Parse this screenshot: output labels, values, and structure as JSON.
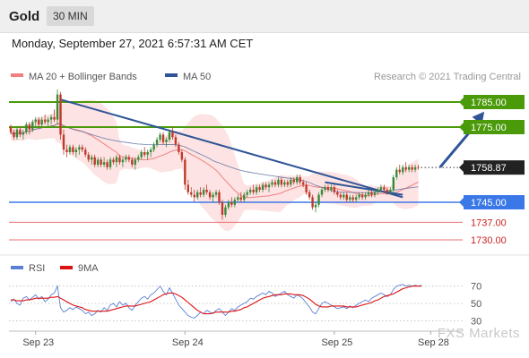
{
  "header": {
    "instrument": "Gold",
    "timeframe": "30 MIN",
    "datetime": "Monday, September 27, 2021 6:57:31 AM CET"
  },
  "colors": {
    "bullish": "#3a8a3a",
    "bearish": "#c0392b",
    "resistance": "#4a9a0a",
    "support": "#3b78e7",
    "target": "#e87070",
    "trend": "#2f5597",
    "ma20": "#f08080",
    "ma50": "#5a6fa0",
    "rsi": "#5b7fd6",
    "rsi_ma": "#dd1111",
    "last_price": "#222222"
  },
  "chart_data": [
    {
      "type": "candlestick",
      "legend": [
        {
          "name": "MA 20 + Bollinger Bands",
          "color": "#f08080"
        },
        {
          "name": "MA 50",
          "color": "#2f5597"
        }
      ],
      "credit": "Research © 2021 Trading Central",
      "ylim": [
        1725,
        1795
      ],
      "x_labels": [
        {
          "label": "Sep 23",
          "index": 8
        },
        {
          "label": "Sep 24",
          "index": 56
        },
        {
          "label": "Sep 25",
          "index": 104
        },
        {
          "label": "Sep 28",
          "index": 135
        }
      ],
      "levels": [
        {
          "label": "1785.00",
          "value": 1785,
          "kind": "resistance"
        },
        {
          "label": "1775.00",
          "value": 1775,
          "kind": "resistance"
        },
        {
          "label": "1758.87",
          "value": 1758.87,
          "kind": "last"
        },
        {
          "label": "1745.00",
          "value": 1745,
          "kind": "support"
        },
        {
          "label": "1737.00",
          "value": 1737,
          "kind": "target"
        },
        {
          "label": "1730.00",
          "value": 1730,
          "kind": "target"
        }
      ],
      "trendlines": [
        {
          "from": [
            16,
            1786
          ],
          "to": [
            126,
            1747
          ]
        },
        {
          "from": [
            101,
            1753
          ],
          "to": [
            126,
            1748
          ]
        }
      ],
      "forecast_arrow": {
        "from": [
          138,
          1759
        ],
        "to": [
          147,
          1784
        ]
      },
      "candles": [
        [
          1775,
          1776,
          1772,
          1773
        ],
        [
          1773,
          1774,
          1770,
          1771
        ],
        [
          1771,
          1775,
          1770,
          1774
        ],
        [
          1774,
          1775,
          1771,
          1772
        ],
        [
          1772,
          1774,
          1770,
          1773
        ],
        [
          1773,
          1777,
          1772,
          1776
        ],
        [
          1776,
          1777,
          1772,
          1774
        ],
        [
          1774,
          1778,
          1773,
          1777
        ],
        [
          1777,
          1779,
          1775,
          1778
        ],
        [
          1778,
          1779,
          1775,
          1776
        ],
        [
          1776,
          1779,
          1775,
          1778
        ],
        [
          1778,
          1780,
          1776,
          1777
        ],
        [
          1777,
          1779,
          1775,
          1778
        ],
        [
          1778,
          1780,
          1776,
          1779
        ],
        [
          1779,
          1782,
          1777,
          1778
        ],
        [
          1778,
          1790,
          1776,
          1788
        ],
        [
          1788,
          1789,
          1770,
          1772
        ],
        [
          1772,
          1774,
          1764,
          1766
        ],
        [
          1766,
          1768,
          1763,
          1765
        ],
        [
          1765,
          1768,
          1764,
          1767
        ],
        [
          1767,
          1768,
          1764,
          1765
        ],
        [
          1765,
          1767,
          1763,
          1766
        ],
        [
          1766,
          1768,
          1764,
          1767
        ],
        [
          1767,
          1768,
          1765,
          1766
        ],
        [
          1766,
          1767,
          1763,
          1764
        ],
        [
          1764,
          1765,
          1761,
          1762
        ],
        [
          1762,
          1764,
          1760,
          1763
        ],
        [
          1763,
          1764,
          1759,
          1760
        ],
        [
          1760,
          1763,
          1759,
          1762
        ],
        [
          1762,
          1763,
          1759,
          1760
        ],
        [
          1760,
          1763,
          1759,
          1761
        ],
        [
          1761,
          1762,
          1758,
          1759
        ],
        [
          1759,
          1763,
          1758,
          1762
        ],
        [
          1762,
          1763,
          1760,
          1761
        ],
        [
          1761,
          1764,
          1759,
          1763
        ],
        [
          1763,
          1764,
          1760,
          1761
        ],
        [
          1761,
          1763,
          1759,
          1762
        ],
        [
          1762,
          1764,
          1761,
          1763
        ],
        [
          1763,
          1764,
          1761,
          1762
        ],
        [
          1762,
          1763,
          1759,
          1760
        ],
        [
          1760,
          1763,
          1758,
          1762
        ],
        [
          1762,
          1764,
          1761,
          1763
        ],
        [
          1763,
          1766,
          1762,
          1765
        ],
        [
          1765,
          1767,
          1763,
          1764
        ],
        [
          1764,
          1766,
          1762,
          1765
        ],
        [
          1765,
          1767,
          1763,
          1766
        ],
        [
          1766,
          1769,
          1765,
          1768
        ],
        [
          1768,
          1771,
          1767,
          1770
        ],
        [
          1770,
          1773,
          1769,
          1772
        ],
        [
          1772,
          1773,
          1768,
          1769
        ],
        [
          1769,
          1771,
          1767,
          1770
        ],
        [
          1770,
          1774,
          1769,
          1773
        ],
        [
          1773,
          1775,
          1770,
          1771
        ],
        [
          1771,
          1772,
          1767,
          1768
        ],
        [
          1768,
          1769,
          1764,
          1765
        ],
        [
          1765,
          1766,
          1761,
          1762
        ],
        [
          1762,
          1763,
          1750,
          1752
        ],
        [
          1752,
          1754,
          1748,
          1749
        ],
        [
          1749,
          1751,
          1747,
          1748
        ],
        [
          1748,
          1750,
          1745,
          1747
        ],
        [
          1747,
          1750,
          1746,
          1749
        ],
        [
          1749,
          1751,
          1747,
          1748
        ],
        [
          1748,
          1751,
          1747,
          1750
        ],
        [
          1750,
          1752,
          1748,
          1749
        ],
        [
          1749,
          1750,
          1746,
          1747
        ],
        [
          1747,
          1749,
          1745,
          1748
        ],
        [
          1748,
          1750,
          1747,
          1749
        ],
        [
          1749,
          1750,
          1744,
          1745
        ],
        [
          1745,
          1746,
          1738,
          1740
        ],
        [
          1740,
          1744,
          1739,
          1743
        ],
        [
          1743,
          1746,
          1742,
          1745
        ],
        [
          1745,
          1747,
          1743,
          1744
        ],
        [
          1744,
          1747,
          1743,
          1746
        ],
        [
          1746,
          1748,
          1745,
          1747
        ],
        [
          1747,
          1749,
          1745,
          1746
        ],
        [
          1746,
          1749,
          1745,
          1748
        ],
        [
          1748,
          1750,
          1747,
          1749
        ],
        [
          1749,
          1751,
          1748,
          1750
        ],
        [
          1750,
          1752,
          1748,
          1749
        ],
        [
          1749,
          1752,
          1748,
          1751
        ],
        [
          1751,
          1752,
          1749,
          1750
        ],
        [
          1750,
          1753,
          1749,
          1752
        ],
        [
          1752,
          1753,
          1750,
          1751
        ],
        [
          1751,
          1753,
          1749,
          1752
        ],
        [
          1752,
          1754,
          1751,
          1753
        ],
        [
          1753,
          1754,
          1751,
          1752
        ],
        [
          1752,
          1755,
          1751,
          1754
        ],
        [
          1754,
          1755,
          1751,
          1752
        ],
        [
          1752,
          1754,
          1751,
          1753
        ],
        [
          1753,
          1754,
          1751,
          1752
        ],
        [
          1752,
          1755,
          1751,
          1754
        ],
        [
          1754,
          1755,
          1752,
          1753
        ],
        [
          1753,
          1756,
          1752,
          1755
        ],
        [
          1755,
          1756,
          1752,
          1753
        ],
        [
          1753,
          1754,
          1751,
          1752
        ],
        [
          1752,
          1753,
          1748,
          1749
        ],
        [
          1749,
          1750,
          1746,
          1747
        ],
        [
          1747,
          1748,
          1742,
          1743
        ],
        [
          1743,
          1745,
          1741,
          1744
        ],
        [
          1744,
          1749,
          1743,
          1748
        ],
        [
          1748,
          1751,
          1747,
          1750
        ],
        [
          1750,
          1752,
          1749,
          1751
        ],
        [
          1751,
          1752,
          1749,
          1750
        ],
        [
          1750,
          1752,
          1749,
          1751
        ],
        [
          1751,
          1752,
          1748,
          1749
        ],
        [
          1749,
          1750,
          1747,
          1748
        ],
        [
          1748,
          1749,
          1746,
          1747
        ],
        [
          1747,
          1749,
          1746,
          1748
        ],
        [
          1748,
          1749,
          1745,
          1746
        ],
        [
          1746,
          1748,
          1745,
          1747
        ],
        [
          1747,
          1748,
          1745,
          1746
        ],
        [
          1746,
          1748,
          1745,
          1747
        ],
        [
          1747,
          1749,
          1746,
          1748
        ],
        [
          1748,
          1749,
          1746,
          1747
        ],
        [
          1747,
          1749,
          1746,
          1748
        ],
        [
          1748,
          1750,
          1747,
          1749
        ],
        [
          1749,
          1750,
          1747,
          1748
        ],
        [
          1748,
          1750,
          1747,
          1749
        ],
        [
          1749,
          1751,
          1748,
          1750
        ],
        [
          1750,
          1752,
          1749,
          1751
        ],
        [
          1751,
          1752,
          1749,
          1750
        ],
        [
          1750,
          1751,
          1748,
          1749
        ],
        [
          1749,
          1751,
          1748,
          1750
        ],
        [
          1750,
          1756,
          1749,
          1755
        ],
        [
          1755,
          1759,
          1754,
          1758
        ],
        [
          1758,
          1760,
          1756,
          1757
        ],
        [
          1757,
          1760,
          1756,
          1759
        ],
        [
          1759,
          1761,
          1757,
          1758
        ],
        [
          1758,
          1760,
          1757,
          1759
        ],
        [
          1759,
          1760,
          1757,
          1758
        ],
        [
          1758,
          1760,
          1757,
          1759
        ],
        [
          1759,
          1760,
          1758,
          1758.87
        ]
      ]
    },
    {
      "type": "line",
      "legend": [
        {
          "name": "RSI",
          "color": "#5b7fd6"
        },
        {
          "name": "9MA",
          "color": "#dd1111"
        }
      ],
      "ylim": [
        20,
        80
      ],
      "y_ticks": [
        {
          "label": "70",
          "value": 70
        },
        {
          "label": "50",
          "value": 50
        },
        {
          "label": "30",
          "value": 30
        }
      ],
      "series": [
        {
          "name": "RSI",
          "values": [
            52,
            55,
            50,
            48,
            56,
            58,
            54,
            57,
            60,
            55,
            58,
            52,
            55,
            60,
            62,
            70,
            45,
            40,
            42,
            45,
            43,
            46,
            44,
            42,
            38,
            40,
            36,
            38,
            42,
            40,
            45,
            42,
            48,
            50,
            46,
            52,
            48,
            50,
            45,
            42,
            48,
            52,
            56,
            58,
            55,
            60,
            62,
            66,
            70,
            64,
            60,
            68,
            62,
            55,
            48,
            44,
            40,
            36,
            34,
            33,
            36,
            40,
            38,
            42,
            40,
            38,
            42,
            44,
            40,
            36,
            40,
            44,
            42,
            46,
            48,
            50,
            52,
            56,
            55,
            58,
            60,
            62,
            60,
            64,
            62,
            58,
            60,
            62,
            64,
            60,
            58,
            56,
            60,
            58,
            55,
            50,
            46,
            40,
            38,
            44,
            50,
            52,
            50,
            48,
            46,
            44,
            45,
            46,
            44,
            47,
            45,
            48,
            50,
            52,
            54,
            52,
            56,
            58,
            60,
            62,
            60,
            58,
            60,
            66,
            70,
            71,
            72,
            70,
            71,
            70,
            71,
            70,
            71
          ]
        },
        {
          "name": "9MA",
          "values": [
            54,
            54,
            53,
            53,
            53,
            54,
            54,
            55,
            56,
            56,
            56,
            56,
            56,
            57,
            57,
            58,
            56,
            54,
            52,
            50,
            48,
            47,
            46,
            45,
            43,
            42,
            41,
            41,
            41,
            41,
            41,
            41,
            42,
            43,
            44,
            45,
            46,
            47,
            47,
            47,
            47,
            48,
            49,
            50,
            51,
            52,
            54,
            56,
            58,
            60,
            61,
            62,
            62,
            61,
            59,
            57,
            54,
            51,
            48,
            45,
            42,
            40,
            38,
            38,
            38,
            39,
            40,
            40,
            40,
            40,
            40,
            41,
            41,
            42,
            43,
            45,
            46,
            48,
            50,
            52,
            54,
            56,
            57,
            58,
            59,
            60,
            60,
            60,
            61,
            61,
            61,
            60,
            60,
            60,
            59,
            57,
            55,
            52,
            49,
            47,
            46,
            46,
            46,
            47,
            47,
            47,
            47,
            47,
            46,
            46,
            46,
            46,
            47,
            48,
            49,
            50,
            51,
            53,
            54,
            56,
            58,
            59,
            60,
            61,
            63,
            65,
            67,
            68,
            69,
            70,
            70,
            70,
            70
          ]
        }
      ]
    }
  ],
  "watermark": "FXS Markets"
}
